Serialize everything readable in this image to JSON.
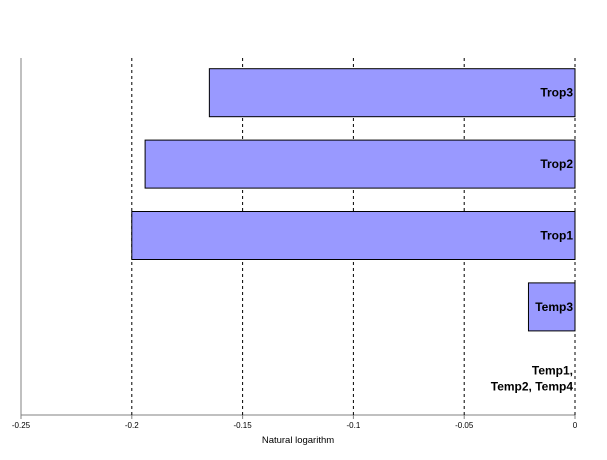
{
  "chart_data": {
    "type": "bar",
    "orientation": "horizontal",
    "title": "",
    "xlabel": "Natural logarithm",
    "ylabel": "",
    "xlim": [
      -0.25,
      0
    ],
    "x_ticks": [
      -0.25,
      -0.2,
      -0.15,
      -0.1,
      -0.05,
      0
    ],
    "x_tick_labels": [
      "-0.25",
      "-0.2",
      "-0.15",
      "-0.1",
      "-0.05",
      "0"
    ],
    "grid": "vertical dashed",
    "legend": "none",
    "categories": [
      "Trop3",
      "Trop2",
      "Trop1",
      "Temp3",
      "Temp1, Temp2, Temp4"
    ],
    "values": [
      -0.165,
      -0.194,
      -0.2,
      -0.021,
      0
    ],
    "bar_labels": [
      "Trop3",
      "Trop2",
      "Trop1",
      "Temp3",
      "Temp1,\nTemp2, Temp4"
    ],
    "colors": {
      "bar_fill": "#9999ff",
      "bar_stroke": "#000000",
      "grid": "#000000",
      "background": "#ffffff"
    }
  }
}
